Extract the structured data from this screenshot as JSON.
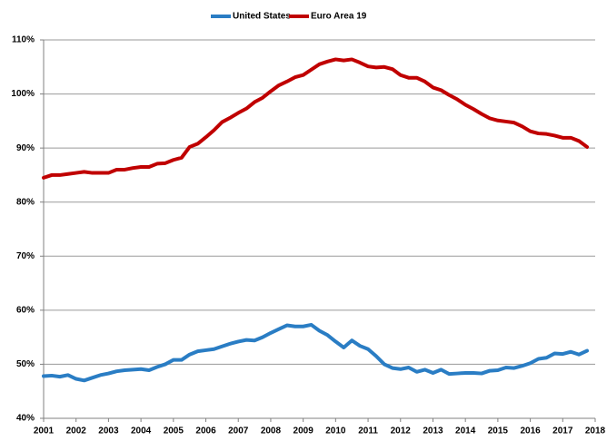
{
  "chart_data": {
    "type": "line",
    "x": [
      2001,
      2001.25,
      2001.5,
      2001.75,
      2002,
      2002.25,
      2002.5,
      2002.75,
      2003,
      2003.25,
      2003.5,
      2003.75,
      2004,
      2004.25,
      2004.5,
      2004.75,
      2005,
      2005.25,
      2005.5,
      2005.75,
      2006,
      2006.25,
      2006.5,
      2006.75,
      2007,
      2007.25,
      2007.5,
      2007.75,
      2008,
      2008.25,
      2008.5,
      2008.75,
      2009,
      2009.25,
      2009.5,
      2009.75,
      2010,
      2010.25,
      2010.5,
      2010.75,
      2011,
      2011.25,
      2011.5,
      2011.75,
      2012,
      2012.25,
      2012.5,
      2012.75,
      2013,
      2013.25,
      2013.5,
      2013.75,
      2014,
      2014.25,
      2014.5,
      2014.75,
      2015,
      2015.25,
      2015.5,
      2015.75,
      2016,
      2016.25,
      2016.5,
      2016.75,
      2017,
      2017.25,
      2017.5,
      2017.75
    ],
    "series": [
      {
        "name": "United States",
        "color": "#2a7dc4",
        "values": [
          47.8,
          47.9,
          47.7,
          48,
          47.3,
          47,
          47.5,
          48,
          48.3,
          48.7,
          48.9,
          49,
          49.1,
          48.9,
          49.5,
          50,
          50.8,
          50.8,
          51.8,
          52.4,
          52.6,
          52.8,
          53.3,
          53.8,
          54.2,
          54.5,
          54.4,
          55,
          55.8,
          56.5,
          57.2,
          57,
          57,
          57.3,
          56.2,
          55.4,
          54.2,
          53.1,
          54.4,
          53.4,
          52.8,
          51.5,
          50,
          49.3,
          49.1,
          49.4,
          48.6,
          49,
          48.4,
          49,
          48.2,
          48.3,
          48.4,
          48.4,
          48.3,
          48.8,
          48.9,
          49.4,
          49.3,
          49.7,
          50.2,
          51,
          51.2,
          52,
          51.9,
          52.3,
          51.8,
          52.5
        ]
      },
      {
        "name": "Euro Area 19",
        "color": "#c00000",
        "values": [
          84.5,
          85,
          85,
          85.2,
          85.4,
          85.6,
          85.4,
          85.4,
          85.4,
          86,
          86,
          86.3,
          86.5,
          86.5,
          87.1,
          87.2,
          87.8,
          88.2,
          90.2,
          90.8,
          92,
          93.3,
          94.8,
          95.6,
          96.5,
          97.3,
          98.5,
          99.3,
          100.5,
          101.6,
          102.3,
          103.1,
          103.5,
          104.5,
          105.5,
          106,
          106.4,
          106.2,
          106.4,
          105.8,
          105.1,
          104.9,
          105,
          104.6,
          103.5,
          103,
          103,
          102.3,
          101.2,
          100.7,
          99.8,
          99,
          98,
          97.2,
          96.3,
          95.5,
          95.1,
          94.9,
          94.7,
          94,
          93.1,
          92.7,
          92.6,
          92.3,
          91.9,
          91.9,
          91.3,
          90.2
        ]
      }
    ],
    "xlim": [
      2001,
      2018
    ],
    "xticks": [
      2001,
      2002,
      2003,
      2004,
      2005,
      2006,
      2007,
      2008,
      2009,
      2010,
      2011,
      2012,
      2013,
      2014,
      2015,
      2016,
      2017,
      2018
    ],
    "ylim": [
      40,
      110
    ],
    "yticks": [
      {
        "value": 40,
        "label": "40%"
      },
      {
        "value": 50,
        "label": "50%"
      },
      {
        "value": 60,
        "label": "60%"
      },
      {
        "value": 70,
        "label": "70%"
      },
      {
        "value": 80,
        "label": "80%"
      },
      {
        "value": 90,
        "label": "90%"
      },
      {
        "value": 100,
        "label": "100%"
      },
      {
        "value": 110,
        "label": "110%"
      }
    ],
    "grid": true,
    "legend": "top"
  }
}
